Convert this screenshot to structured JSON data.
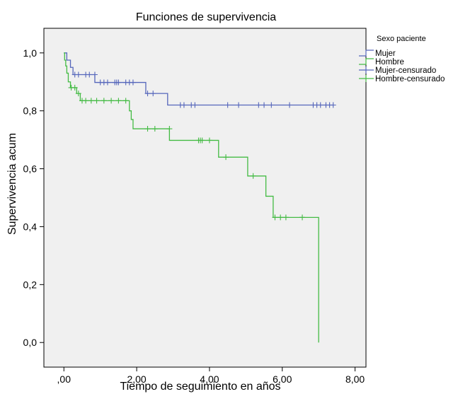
{
  "chart_data": {
    "type": "line",
    "title": "Funciones de supervivencia",
    "xlabel": "Tiempo de seguimiento en años",
    "ylabel": "Supervivencia acum",
    "xlim": [
      -0.55,
      8.3
    ],
    "ylim": [
      -0.085,
      1.085
    ],
    "xticks": [
      0,
      2,
      4,
      6,
      8
    ],
    "xtick_labels": [
      ",00",
      "2,00",
      "4,00",
      "6,00",
      "8,00"
    ],
    "yticks": [
      0,
      0.2,
      0.4,
      0.6,
      0.8,
      1.0
    ],
    "ytick_labels": [
      "0,0",
      "0,2",
      "0,4",
      "0,6",
      "0,8",
      "1,0"
    ],
    "grid": false,
    "legend_title": "Sexo paciente",
    "legend_position": "right",
    "series": [
      {
        "name": "Mujer",
        "color": "#5566bb",
        "steps": [
          [
            0,
            1.0
          ],
          [
            0.08,
            0.975
          ],
          [
            0.18,
            0.95
          ],
          [
            0.25,
            0.925
          ],
          [
            0.85,
            0.898
          ],
          [
            2.25,
            0.86
          ],
          [
            2.85,
            0.82
          ],
          [
            7.4,
            0.82
          ]
        ]
      },
      {
        "name": "Hombre",
        "color": "#44bb44",
        "steps": [
          [
            0,
            1.0
          ],
          [
            0.02,
            0.975
          ],
          [
            0.05,
            0.955
          ],
          [
            0.08,
            0.93
          ],
          [
            0.12,
            0.9
          ],
          [
            0.18,
            0.88
          ],
          [
            0.35,
            0.86
          ],
          [
            0.45,
            0.835
          ],
          [
            1.8,
            0.8
          ],
          [
            1.85,
            0.77
          ],
          [
            1.9,
            0.738
          ],
          [
            2.9,
            0.698
          ],
          [
            4.25,
            0.64
          ],
          [
            5.05,
            0.575
          ],
          [
            5.55,
            0.505
          ],
          [
            5.75,
            0.432
          ],
          [
            7.0,
            0.0
          ]
        ]
      },
      {
        "name": "Mujer-censurado",
        "color": "#5566bb",
        "points": [
          [
            0.3,
            0.925
          ],
          [
            0.4,
            0.925
          ],
          [
            0.6,
            0.925
          ],
          [
            0.7,
            0.925
          ],
          [
            0.85,
            0.925
          ],
          [
            1.0,
            0.898
          ],
          [
            1.1,
            0.898
          ],
          [
            1.2,
            0.898
          ],
          [
            1.4,
            0.898
          ],
          [
            1.45,
            0.898
          ],
          [
            1.5,
            0.898
          ],
          [
            1.7,
            0.898
          ],
          [
            1.8,
            0.898
          ],
          [
            1.9,
            0.898
          ],
          [
            2.3,
            0.86
          ],
          [
            2.45,
            0.86
          ],
          [
            3.2,
            0.82
          ],
          [
            3.3,
            0.82
          ],
          [
            3.5,
            0.82
          ],
          [
            3.6,
            0.82
          ],
          [
            4.5,
            0.82
          ],
          [
            4.8,
            0.82
          ],
          [
            5.35,
            0.82
          ],
          [
            5.5,
            0.82
          ],
          [
            5.7,
            0.82
          ],
          [
            6.2,
            0.82
          ],
          [
            6.85,
            0.82
          ],
          [
            6.95,
            0.82
          ],
          [
            7.05,
            0.82
          ],
          [
            7.2,
            0.82
          ],
          [
            7.3,
            0.82
          ],
          [
            7.4,
            0.82
          ]
        ]
      },
      {
        "name": "Hombre-censurado",
        "color": "#44bb44",
        "points": [
          [
            0.2,
            0.88
          ],
          [
            0.3,
            0.88
          ],
          [
            0.4,
            0.86
          ],
          [
            0.5,
            0.835
          ],
          [
            0.6,
            0.835
          ],
          [
            0.75,
            0.835
          ],
          [
            0.9,
            0.835
          ],
          [
            1.1,
            0.835
          ],
          [
            1.3,
            0.835
          ],
          [
            1.5,
            0.835
          ],
          [
            1.7,
            0.835
          ],
          [
            2.3,
            0.738
          ],
          [
            2.5,
            0.738
          ],
          [
            2.9,
            0.738
          ],
          [
            3.7,
            0.698
          ],
          [
            3.75,
            0.698
          ],
          [
            3.8,
            0.698
          ],
          [
            4.0,
            0.698
          ],
          [
            4.45,
            0.64
          ],
          [
            5.2,
            0.575
          ],
          [
            5.8,
            0.432
          ],
          [
            5.95,
            0.432
          ],
          [
            6.1,
            0.432
          ],
          [
            6.55,
            0.432
          ]
        ]
      }
    ]
  }
}
